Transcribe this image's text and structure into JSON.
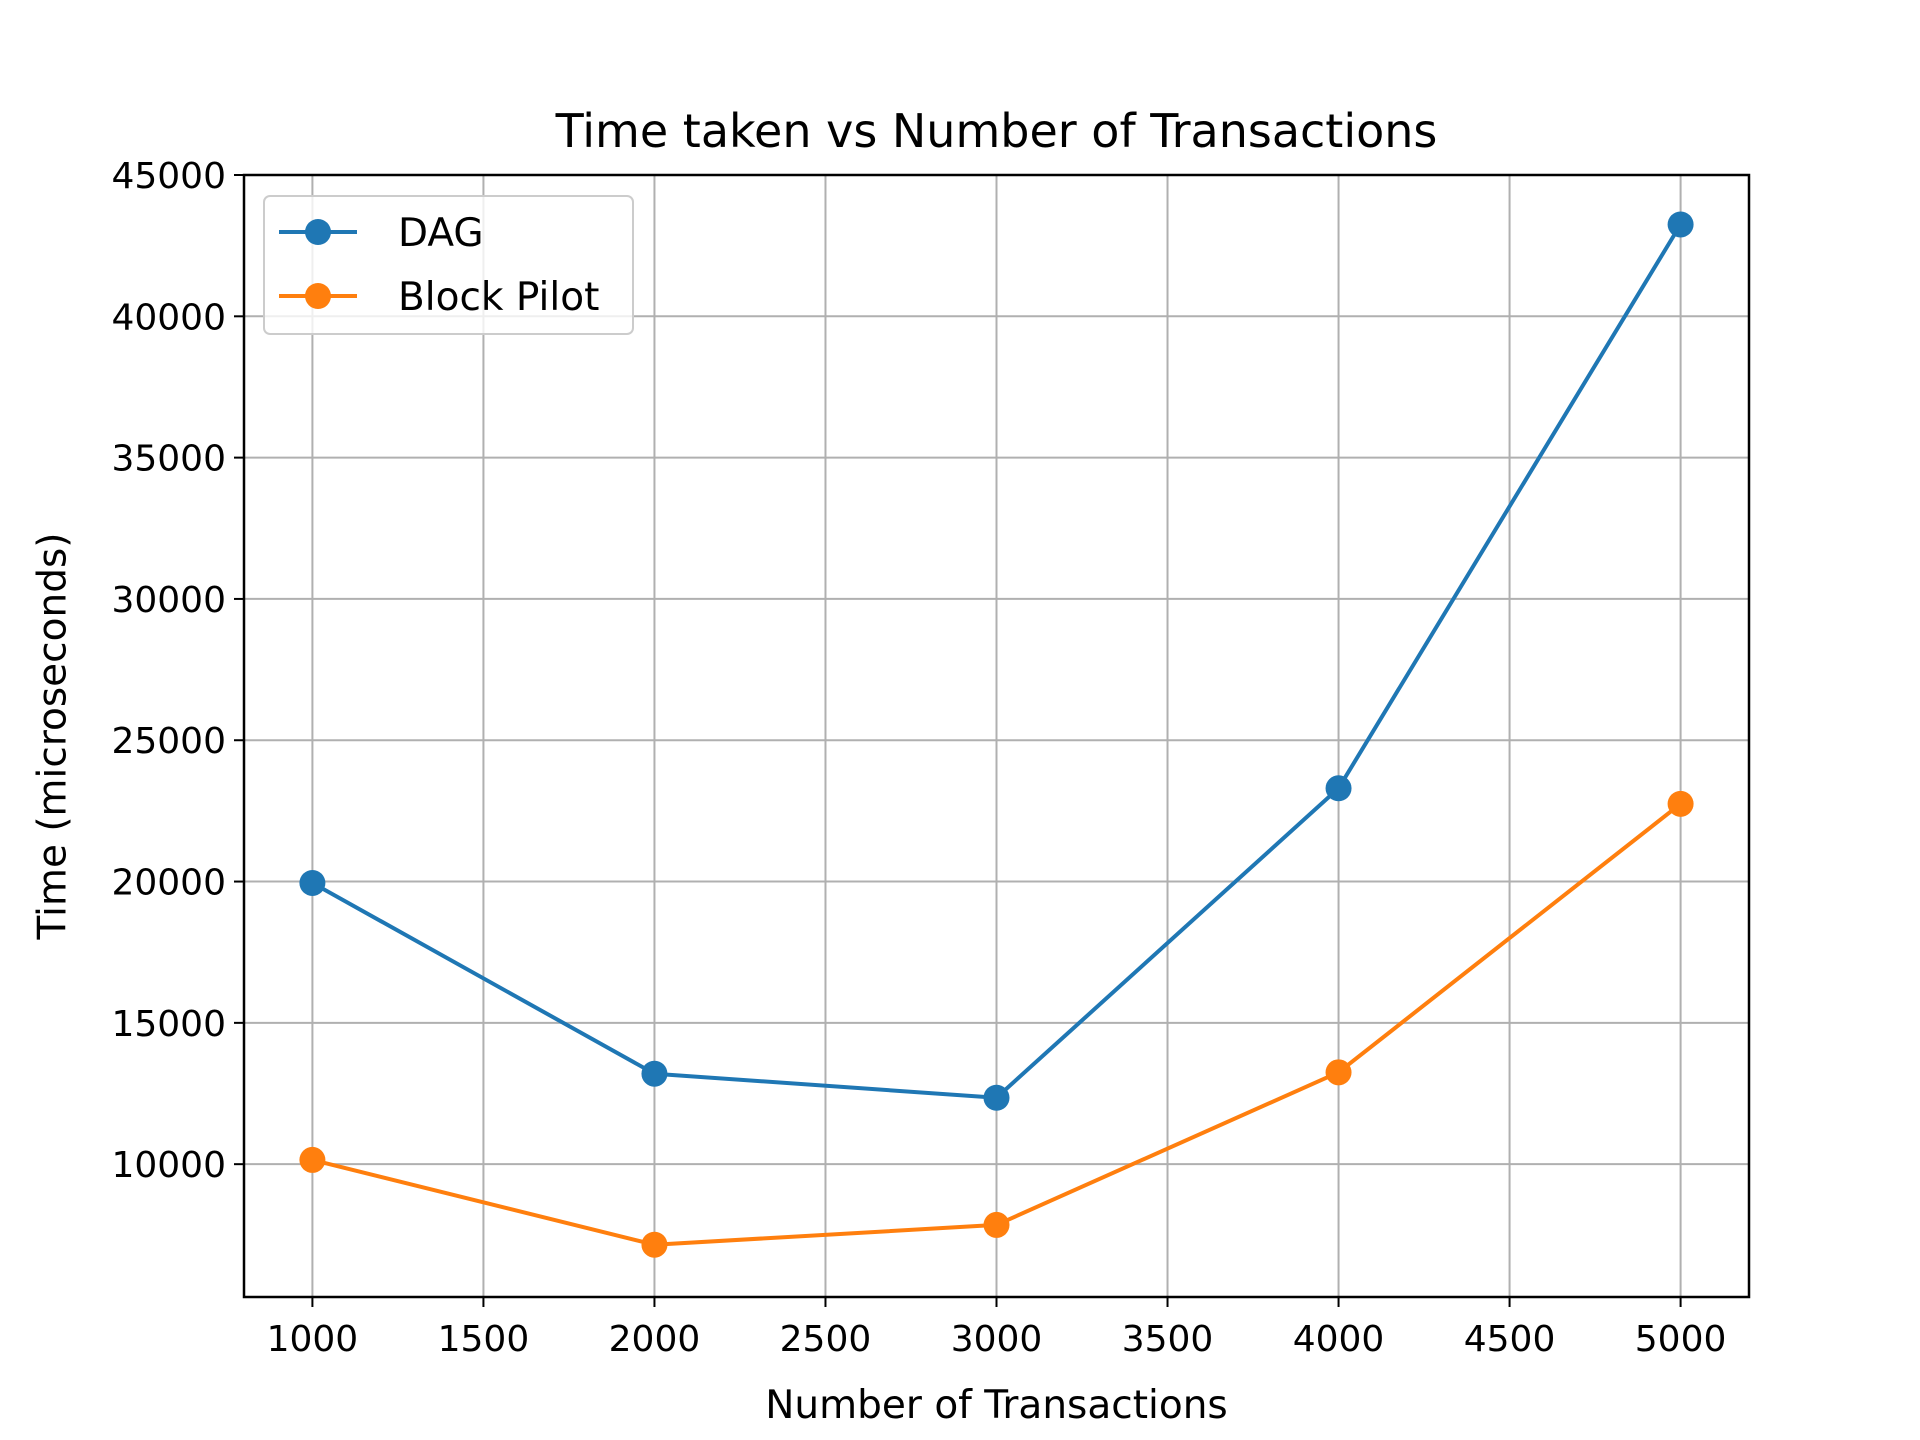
{
  "chart_data": {
    "type": "line",
    "title": "Time taken vs Number of Transactions",
    "xlabel": "Number of Transactions",
    "ylabel": "Time (microseconds)",
    "x": [
      1000,
      2000,
      3000,
      4000,
      5000
    ],
    "series": [
      {
        "name": "DAG",
        "color": "#1f77b4",
        "values": [
          19950,
          13200,
          12350,
          23300,
          43250
        ]
      },
      {
        "name": "Block Pilot",
        "color": "#ff7f0e",
        "values": [
          10150,
          7150,
          7850,
          13250,
          22750
        ]
      }
    ],
    "xlim": [
      800,
      5200
    ],
    "ylim": [
      5300,
      45000
    ],
    "xticks": [
      1000,
      1500,
      2000,
      2500,
      3000,
      3500,
      4000,
      4500,
      5000
    ],
    "yticks": [
      10000,
      15000,
      20000,
      25000,
      30000,
      35000,
      40000,
      45000
    ],
    "grid": true,
    "legend_position": "top-left",
    "marker": "circle"
  }
}
